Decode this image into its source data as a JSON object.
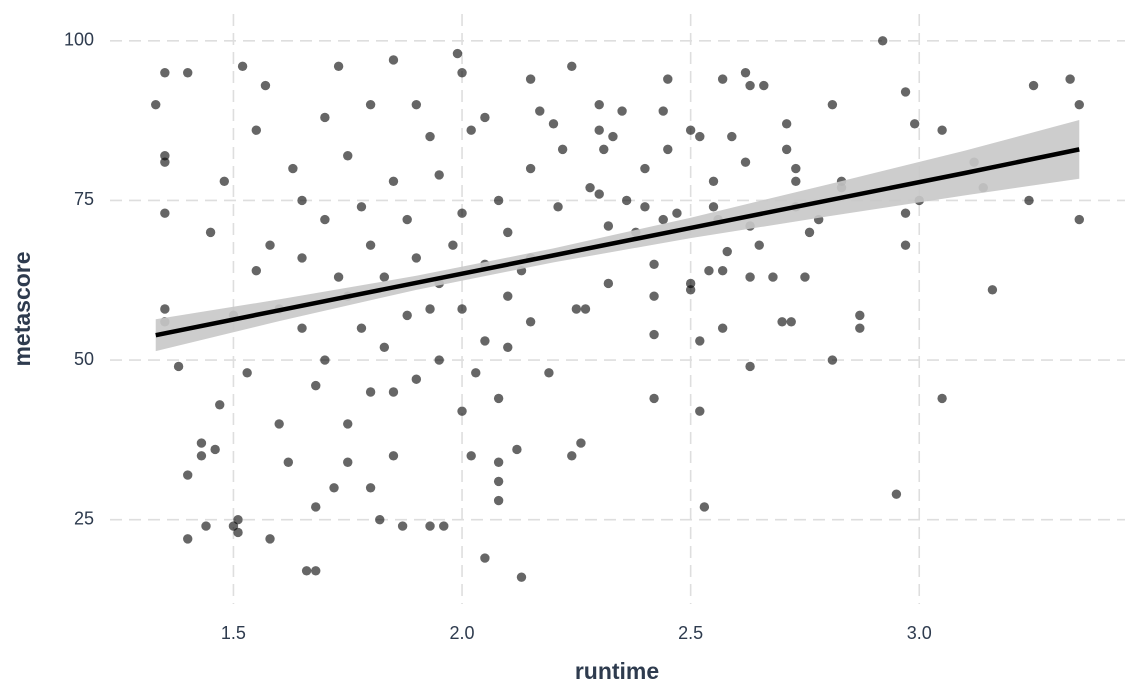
{
  "chart_data": {
    "type": "scatter",
    "x_label": "runtime",
    "y_label": "metascore",
    "xlim": [
      1.23,
      3.45
    ],
    "ylim": [
      11.8,
      104.2
    ],
    "xticks": [
      1.5,
      {
        "value": 2.0,
        "label": "2.0"
      },
      2.5,
      {
        "value": 3.0,
        "label": "3.0"
      }
    ],
    "yticks": [
      25,
      50,
      75,
      100
    ],
    "grid": true,
    "color": "#000000",
    "x": [
      2.92,
      2.95,
      2.97,
      2.97,
      2.97,
      2.99,
      3.0,
      3.05,
      3.05,
      3.12,
      3.14,
      3.16,
      3.24,
      3.25,
      3.33,
      3.35,
      3.35,
      2.81,
      2.81,
      2.83,
      2.83,
      2.87,
      2.87,
      2.78,
      2.76,
      2.73,
      2.73,
      2.73,
      2.75,
      2.71,
      2.71,
      2.72,
      2.7,
      2.68,
      2.66,
      2.63,
      2.62,
      2.62,
      2.63,
      2.63,
      2.65,
      2.63,
      2.57,
      2.57,
      2.57,
      2.58,
      2.59,
      2.52,
      2.5,
      2.53,
      2.52,
      2.52,
      2.54,
      2.55,
      2.55,
      2.56,
      2.45,
      2.45,
      2.44,
      2.44,
      2.42,
      2.42,
      2.42,
      2.42,
      2.47,
      2.5,
      2.5,
      2.4,
      2.4,
      2.38,
      2.36,
      2.35,
      2.33,
      2.32,
      2.32,
      2.3,
      2.3,
      2.31,
      2.3,
      2.28,
      2.27,
      2.25,
      2.26,
      2.24,
      2.24,
      2.22,
      2.21,
      2.2,
      2.19,
      2.17,
      2.15,
      2.15,
      2.13,
      2.12,
      2.08,
      2.08,
      2.08,
      2.08,
      2.05,
      2.02,
      2.02,
      1.96,
      1.93,
      1.99,
      2.0,
      1.85,
      1.87,
      1.82,
      1.73,
      1.52,
      1.57,
      1.35,
      1.4,
      1.33,
      1.35,
      1.35,
      1.35,
      1.35,
      1.35,
      1.38,
      1.4,
      1.4,
      1.44,
      1.43,
      1.43,
      1.46,
      1.47,
      1.5,
      1.51,
      1.51,
      1.58,
      1.66,
      1.68,
      1.68,
      1.72,
      1.75,
      1.8,
      1.85,
      1.9,
      1.93,
      1.62,
      1.65,
      1.7,
      1.75,
      1.78,
      1.8,
      1.83,
      1.88,
      1.95,
      2.0,
      2.05,
      2.1,
      1.55,
      1.6,
      1.65,
      1.7,
      1.75,
      1.8,
      1.85,
      1.9,
      1.95,
      2.0,
      2.05,
      2.1,
      2.15,
      1.45,
      1.5,
      1.55,
      1.6,
      1.65,
      1.7,
      1.75,
      1.8,
      1.85,
      1.9,
      1.95,
      2.0,
      2.05,
      2.1,
      2.15,
      1.48,
      1.53,
      1.58,
      1.63,
      1.68,
      1.73,
      1.78,
      1.83,
      1.88,
      1.93,
      1.98,
      2.03,
      2.08,
      2.13
    ],
    "y": [
      100,
      29,
      92,
      73,
      68,
      87,
      75,
      86,
      44,
      81,
      77,
      61,
      75,
      93,
      94,
      90,
      72,
      90,
      50,
      78,
      77,
      57,
      55,
      72,
      70,
      74,
      80,
      78,
      63,
      87,
      83,
      56,
      56,
      63,
      93,
      93,
      95,
      81,
      63,
      49,
      68,
      71,
      94,
      64,
      55,
      67,
      85,
      85,
      86,
      27,
      42,
      53,
      64,
      74,
      78,
      72,
      94,
      83,
      72,
      89,
      65,
      60,
      54,
      44,
      73,
      62,
      61,
      80,
      74,
      70,
      75,
      89,
      85,
      62,
      71,
      90,
      86,
      83,
      76,
      77,
      58,
      58,
      37,
      35,
      96,
      83,
      74,
      87,
      48,
      89,
      94,
      66,
      16,
      36,
      44,
      34,
      31,
      28,
      19,
      35,
      86,
      24,
      24,
      98,
      95,
      97,
      24,
      25,
      96,
      96,
      93,
      95,
      95,
      90,
      82,
      81,
      73,
      58,
      56,
      49,
      32,
      22,
      24,
      35,
      37,
      36,
      43,
      24,
      23,
      25,
      22,
      17,
      17,
      27,
      30,
      34,
      30,
      45,
      90,
      85,
      34,
      66,
      72,
      60,
      55,
      68,
      63,
      57,
      62,
      58,
      65,
      70,
      64,
      58,
      75,
      50,
      82,
      45,
      78,
      66,
      50,
      73,
      53,
      60,
      56,
      70,
      57,
      86,
      40,
      55,
      88,
      40,
      90,
      35,
      47,
      79,
      42,
      88,
      52,
      80,
      78,
      48,
      68,
      80,
      46,
      63,
      74,
      52,
      72,
      58,
      68,
      48,
      75,
      64
    ],
    "trend": {
      "color": "#000000",
      "band_color": "#c8c8c8",
      "x": [
        1.33,
        1.6,
        1.9,
        2.2,
        2.5,
        2.8,
        3.1,
        3.35
      ],
      "y": [
        53.9,
        57.8,
        62.1,
        66.4,
        70.7,
        75.0,
        79.3,
        83.0
      ],
      "lower": [
        51.4,
        56.1,
        61.0,
        65.3,
        69.1,
        72.5,
        75.8,
        78.4
      ],
      "upper": [
        56.4,
        59.5,
        63.2,
        67.5,
        72.3,
        77.5,
        82.8,
        87.6
      ]
    }
  }
}
